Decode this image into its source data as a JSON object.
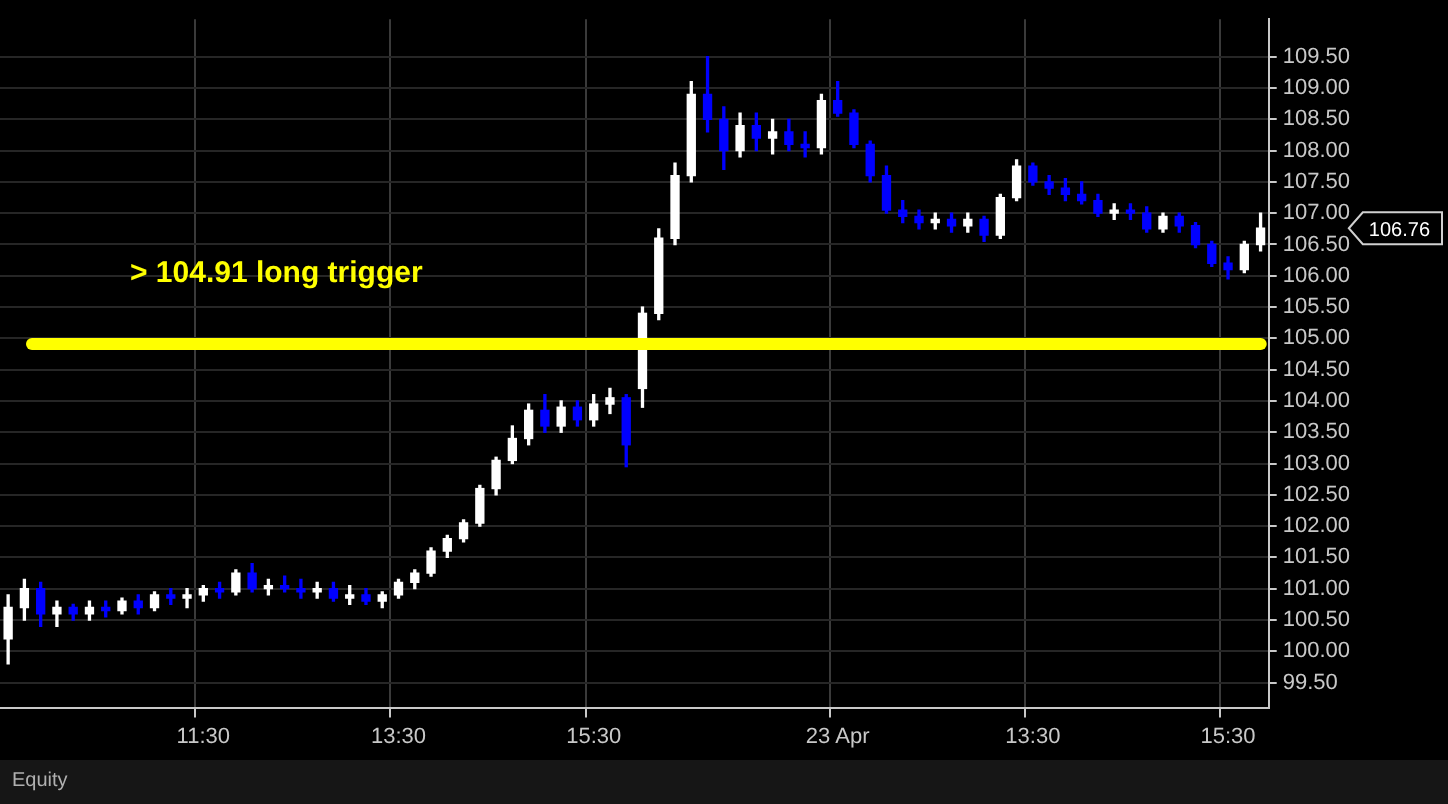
{
  "chart_data": {
    "type": "candlestick",
    "categories": [
      null,
      null,
      null,
      null,
      null,
      null,
      null,
      null,
      null,
      null,
      null,
      null,
      "11:30",
      null,
      null,
      null,
      null,
      null,
      null,
      null,
      null,
      null,
      null,
      null,
      "13:30",
      null,
      null,
      null,
      null,
      null,
      null,
      null,
      null,
      null,
      null,
      null,
      "15:30",
      null,
      null,
      null,
      null,
      null,
      null,
      null,
      null,
      null,
      null,
      null,
      null,
      null,
      null,
      "23 Apr",
      null,
      null,
      null,
      null,
      null,
      null,
      null,
      null,
      null,
      null,
      null,
      "13:30",
      null,
      null,
      null,
      null,
      null,
      null,
      null,
      null,
      null,
      null,
      null,
      "15:30",
      null,
      null
    ],
    "ohlc": [
      [
        100.2,
        100.9,
        99.8,
        100.7
      ],
      [
        100.7,
        101.15,
        100.5,
        101.0
      ],
      [
        101.0,
        101.1,
        100.4,
        100.6
      ],
      [
        100.6,
        100.8,
        100.4,
        100.7
      ],
      [
        100.7,
        100.75,
        100.5,
        100.6
      ],
      [
        100.6,
        100.8,
        100.5,
        100.7
      ],
      [
        100.7,
        100.8,
        100.55,
        100.65
      ],
      [
        100.65,
        100.85,
        100.6,
        100.8
      ],
      [
        100.8,
        100.9,
        100.6,
        100.7
      ],
      [
        100.7,
        100.95,
        100.65,
        100.9
      ],
      [
        100.9,
        101.0,
        100.75,
        100.85
      ],
      [
        100.85,
        101.0,
        100.7,
        100.9
      ],
      [
        100.9,
        101.05,
        100.8,
        101.0
      ],
      [
        101.0,
        101.1,
        100.85,
        100.95
      ],
      [
        100.95,
        101.3,
        100.9,
        101.25
      ],
      [
        101.25,
        101.4,
        100.95,
        101.0
      ],
      [
        101.0,
        101.15,
        100.9,
        101.05
      ],
      [
        101.05,
        101.2,
        100.95,
        101.0
      ],
      [
        101.0,
        101.15,
        100.85,
        100.95
      ],
      [
        100.95,
        101.1,
        100.85,
        101.0
      ],
      [
        101.0,
        101.1,
        100.8,
        100.85
      ],
      [
        100.85,
        101.05,
        100.75,
        100.9
      ],
      [
        100.9,
        101.0,
        100.75,
        100.8
      ],
      [
        100.8,
        100.95,
        100.7,
        100.9
      ],
      [
        100.9,
        101.15,
        100.85,
        101.1
      ],
      [
        101.1,
        101.3,
        101.0,
        101.25
      ],
      [
        101.25,
        101.65,
        101.2,
        101.6
      ],
      [
        101.6,
        101.85,
        101.5,
        101.8
      ],
      [
        101.8,
        102.1,
        101.75,
        102.05
      ],
      [
        102.05,
        102.65,
        102.0,
        102.6
      ],
      [
        102.6,
        103.1,
        102.5,
        103.05
      ],
      [
        103.05,
        103.6,
        103.0,
        103.4
      ],
      [
        103.4,
        103.95,
        103.3,
        103.85
      ],
      [
        103.85,
        104.1,
        103.5,
        103.6
      ],
      [
        103.6,
        104.0,
        103.5,
        103.9
      ],
      [
        103.9,
        104.0,
        103.6,
        103.7
      ],
      [
        103.7,
        104.1,
        103.6,
        103.95
      ],
      [
        103.95,
        104.2,
        103.8,
        104.05
      ],
      [
        104.05,
        104.1,
        102.95,
        103.3
      ],
      [
        104.2,
        105.5,
        103.9,
        105.4
      ],
      [
        105.4,
        106.75,
        105.3,
        106.6
      ],
      [
        106.6,
        107.8,
        106.5,
        107.6
      ],
      [
        107.6,
        109.1,
        107.5,
        108.9
      ],
      [
        108.9,
        109.5,
        108.3,
        108.5
      ],
      [
        108.5,
        108.7,
        107.7,
        108.0
      ],
      [
        108.0,
        108.6,
        107.9,
        108.4
      ],
      [
        108.4,
        108.6,
        108.0,
        108.2
      ],
      [
        108.2,
        108.5,
        107.95,
        108.3
      ],
      [
        108.3,
        108.5,
        108.0,
        108.1
      ],
      [
        108.1,
        108.3,
        107.9,
        108.05
      ],
      [
        108.05,
        108.9,
        107.95,
        108.8
      ],
      [
        108.8,
        109.1,
        108.55,
        108.6
      ],
      [
        108.6,
        108.65,
        108.05,
        108.1
      ],
      [
        108.1,
        108.15,
        107.5,
        107.6
      ],
      [
        107.6,
        107.75,
        107.0,
        107.05
      ],
      [
        107.05,
        107.2,
        106.85,
        106.95
      ],
      [
        106.95,
        107.05,
        106.75,
        106.85
      ],
      [
        106.85,
        107.0,
        106.75,
        106.9
      ],
      [
        106.9,
        107.0,
        106.7,
        106.8
      ],
      [
        106.8,
        107.0,
        106.7,
        106.9
      ],
      [
        106.9,
        106.95,
        106.55,
        106.65
      ],
      [
        106.65,
        107.3,
        106.6,
        107.25
      ],
      [
        107.25,
        107.85,
        107.2,
        107.75
      ],
      [
        107.75,
        107.8,
        107.45,
        107.5
      ],
      [
        107.5,
        107.6,
        107.3,
        107.4
      ],
      [
        107.4,
        107.55,
        107.2,
        107.3
      ],
      [
        107.3,
        107.5,
        107.15,
        107.2
      ],
      [
        107.2,
        107.3,
        106.95,
        107.0
      ],
      [
        107.0,
        107.15,
        106.9,
        107.05
      ],
      [
        107.05,
        107.15,
        106.9,
        107.0
      ],
      [
        107.0,
        107.1,
        106.7,
        106.75
      ],
      [
        106.75,
        107.0,
        106.7,
        106.95
      ],
      [
        106.95,
        107.0,
        106.7,
        106.8
      ],
      [
        106.8,
        106.85,
        106.45,
        106.5
      ],
      [
        106.5,
        106.55,
        106.15,
        106.2
      ],
      [
        106.2,
        106.3,
        105.95,
        106.1
      ],
      [
        106.1,
        106.55,
        106.05,
        106.5
      ],
      [
        106.5,
        107.0,
        106.4,
        106.76
      ]
    ],
    "colors": [
      "#ffffff",
      "#ffffff",
      "#0000ff",
      "#ffffff",
      "#0000ff",
      "#ffffff",
      "#0000ff",
      "#ffffff",
      "#0000ff",
      "#ffffff",
      "#0000ff",
      "#ffffff",
      "#ffffff",
      "#0000ff",
      "#ffffff",
      "#0000ff",
      "#ffffff",
      "#0000ff",
      "#0000ff",
      "#ffffff",
      "#0000ff",
      "#ffffff",
      "#0000ff",
      "#ffffff",
      "#ffffff",
      "#ffffff",
      "#ffffff",
      "#ffffff",
      "#ffffff",
      "#ffffff",
      "#ffffff",
      "#ffffff",
      "#ffffff",
      "#0000ff",
      "#ffffff",
      "#0000ff",
      "#ffffff",
      "#ffffff",
      "#0000ff",
      "#ffffff",
      "#ffffff",
      "#ffffff",
      "#ffffff",
      "#0000ff",
      "#0000ff",
      "#ffffff",
      "#0000ff",
      "#ffffff",
      "#0000ff",
      "#0000ff",
      "#ffffff",
      "#0000ff",
      "#0000ff",
      "#0000ff",
      "#0000ff",
      "#0000ff",
      "#0000ff",
      "#ffffff",
      "#0000ff",
      "#ffffff",
      "#0000ff",
      "#ffffff",
      "#ffffff",
      "#0000ff",
      "#0000ff",
      "#0000ff",
      "#0000ff",
      "#0000ff",
      "#ffffff",
      "#0000ff",
      "#0000ff",
      "#ffffff",
      "#0000ff",
      "#0000ff",
      "#0000ff",
      "#0000ff",
      "#ffffff",
      "#ffffff"
    ],
    "ylim": [
      99.1,
      110.1
    ],
    "yticks": [
      {
        "value": 99.5,
        "label": "99.50"
      },
      {
        "value": 100,
        "label": "100.00"
      },
      {
        "value": 100.5,
        "label": "100.50"
      },
      {
        "value": 101,
        "label": "101.00"
      },
      {
        "value": 101.5,
        "label": "101.50"
      },
      {
        "value": 102,
        "label": "102.00"
      },
      {
        "value": 102.5,
        "label": "102.50"
      },
      {
        "value": 103,
        "label": "103.00"
      },
      {
        "value": 103.5,
        "label": "103.50"
      },
      {
        "value": 104,
        "label": "104.00"
      },
      {
        "value": 104.5,
        "label": "104.50"
      },
      {
        "value": 105,
        "label": "105.00"
      },
      {
        "value": 105.5,
        "label": "105.50"
      },
      {
        "value": 106,
        "label": "106.00"
      },
      {
        "value": 106.5,
        "label": "106.50"
      },
      {
        "value": 107,
        "label": "107.00"
      },
      {
        "value": 107.5,
        "label": "107.50"
      },
      {
        "value": 108,
        "label": "108.00"
      },
      {
        "value": 108.5,
        "label": "108.50"
      },
      {
        "value": 109,
        "label": "109.00"
      },
      {
        "value": 109.5,
        "label": "109.50"
      }
    ],
    "ref_lines": [
      {
        "axis": "y",
        "value": 104.91,
        "label": "> 104.91 long trigger",
        "color": "#ffff00"
      }
    ],
    "annotations": [
      "106.76",
      "Equity"
    ],
    "grid": true,
    "legend": false
  }
}
